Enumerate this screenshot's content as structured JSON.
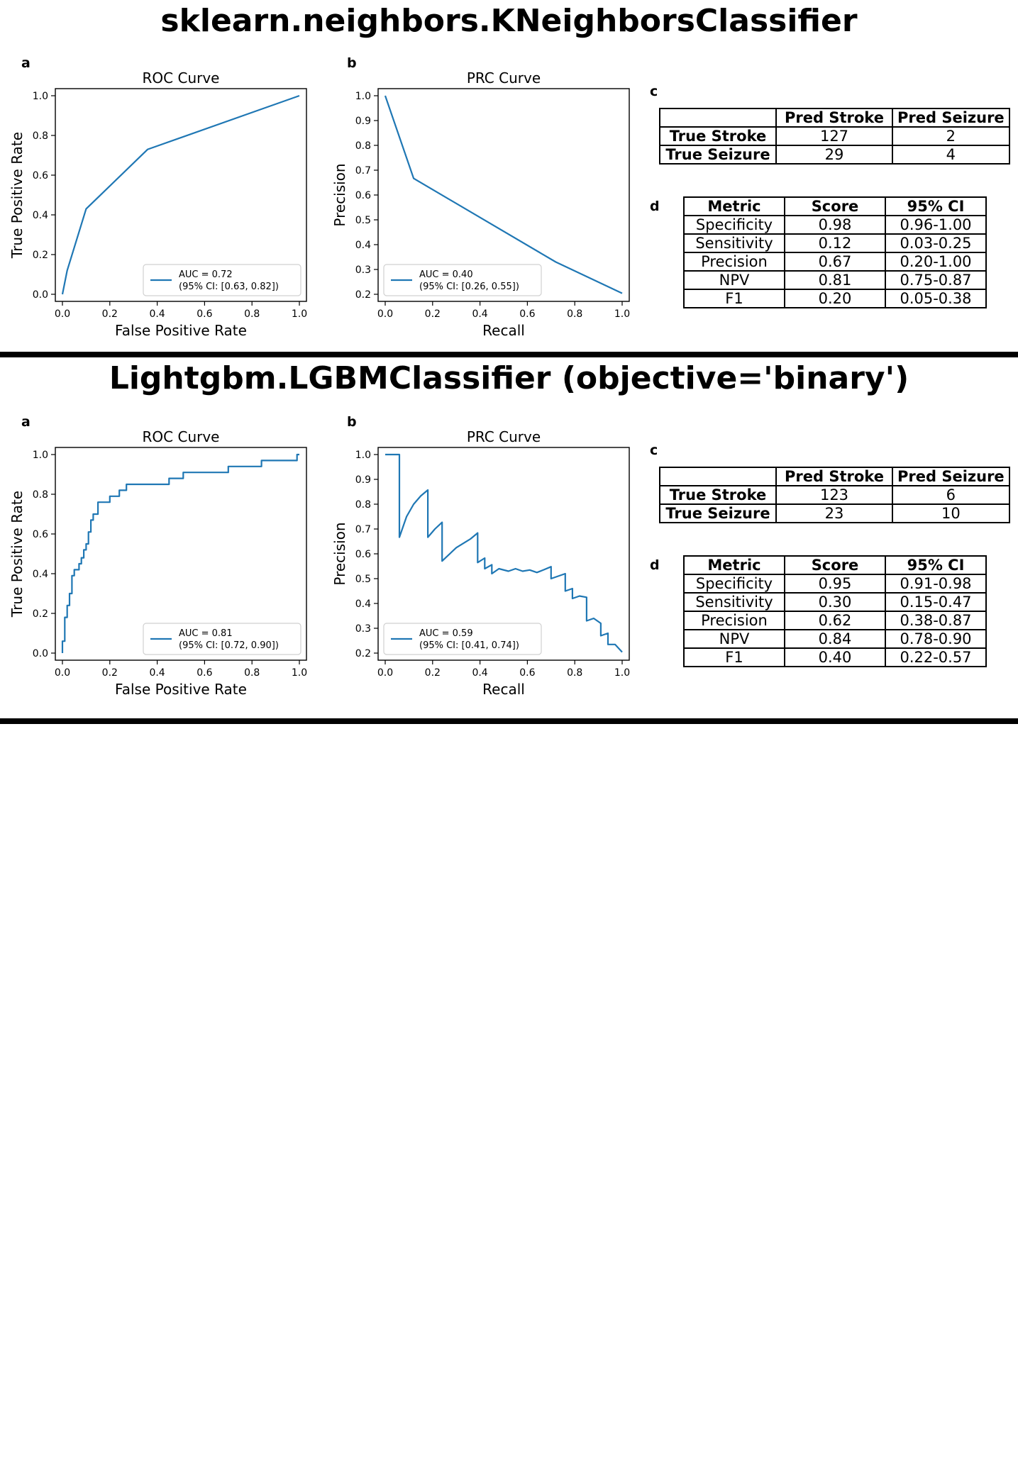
{
  "sections": [
    {
      "title": "sklearn.neighbors.KNeighborsClassifier",
      "panel_letters": [
        "a",
        "b",
        "c",
        "d"
      ],
      "confusion_matrix": {
        "col_headers": [
          "Pred Stroke",
          "Pred Seizure"
        ],
        "rows": [
          {
            "label": "True Stroke",
            "values": [
              "127",
              "2"
            ]
          },
          {
            "label": "True Seizure",
            "values": [
              "29",
              "4"
            ]
          }
        ]
      },
      "metrics": {
        "headers": [
          "Metric",
          "Score",
          "95% CI"
        ],
        "rows": [
          [
            "Specificity",
            "0.98",
            "0.96-1.00"
          ],
          [
            "Sensitivity",
            "0.12",
            "0.03-0.25"
          ],
          [
            "Precision",
            "0.67",
            "0.20-1.00"
          ],
          [
            "NPV",
            "0.81",
            "0.75-0.87"
          ],
          [
            "F1",
            "0.20",
            "0.05-0.38"
          ]
        ]
      }
    },
    {
      "title": "Lightgbm.LGBMClassifier (objective='binary')",
      "panel_letters": [
        "a",
        "b",
        "c",
        "d"
      ],
      "confusion_matrix": {
        "col_headers": [
          "Pred Stroke",
          "Pred Seizure"
        ],
        "rows": [
          {
            "label": "True Stroke",
            "values": [
              "123",
              "6"
            ]
          },
          {
            "label": "True Seizure",
            "values": [
              "23",
              "10"
            ]
          }
        ]
      },
      "metrics": {
        "headers": [
          "Metric",
          "Score",
          "95% CI"
        ],
        "rows": [
          [
            "Specificity",
            "0.95",
            "0.91-0.98"
          ],
          [
            "Sensitivity",
            "0.30",
            "0.15-0.47"
          ],
          [
            "Precision",
            "0.62",
            "0.38-0.87"
          ],
          [
            "NPV",
            "0.84",
            "0.78-0.90"
          ],
          [
            "F1",
            "0.40",
            "0.22-0.57"
          ]
        ]
      }
    }
  ],
  "chart_data": [
    {
      "type": "line",
      "title": "ROC Curve",
      "xlabel": "False Positive Rate",
      "ylabel": "True Positive Rate",
      "xlim": [
        0.0,
        1.0
      ],
      "ylim": [
        0.0,
        1.0
      ],
      "xticks": [
        "0.0",
        "0.2",
        "0.4",
        "0.6",
        "0.8",
        "1.0"
      ],
      "yticks": [
        "0.0",
        "0.2",
        "0.4",
        "0.6",
        "0.8",
        "1.0"
      ],
      "legend": {
        "location": "lower right",
        "lines": [
          "AUC = 0.72",
          "(95% CI: [0.63, 0.82])"
        ]
      },
      "color": "#1f77b4",
      "x": [
        0.0,
        0.02,
        0.1,
        0.36,
        1.0
      ],
      "y": [
        0.0,
        0.12,
        0.43,
        0.73,
        1.0
      ]
    },
    {
      "type": "line",
      "title": "PRC Curve",
      "xlabel": "Recall",
      "ylabel": "Precision",
      "xlim": [
        0.0,
        1.0
      ],
      "ylim": [
        0.2,
        1.0
      ],
      "xticks": [
        "0.0",
        "0.2",
        "0.4",
        "0.6",
        "0.8",
        "1.0"
      ],
      "yticks": [
        "0.2",
        "0.3",
        "0.4",
        "0.5",
        "0.6",
        "0.7",
        "0.8",
        "0.9",
        "1.0"
      ],
      "legend": {
        "location": "lower left",
        "lines": [
          "AUC = 0.40",
          "(95% CI: [0.26, 0.55])"
        ]
      },
      "color": "#1f77b4",
      "x": [
        0.0,
        0.12,
        0.72,
        1.0
      ],
      "y": [
        1.0,
        0.667,
        0.33,
        0.204
      ]
    },
    {
      "type": "line",
      "title": "ROC Curve",
      "xlabel": "False Positive Rate",
      "ylabel": "True Positive Rate",
      "xlim": [
        0.0,
        1.0
      ],
      "ylim": [
        0.0,
        1.0
      ],
      "xticks": [
        "0.0",
        "0.2",
        "0.4",
        "0.6",
        "0.8",
        "1.0"
      ],
      "yticks": [
        "0.0",
        "0.2",
        "0.4",
        "0.6",
        "0.8",
        "1.0"
      ],
      "legend": {
        "location": "lower right",
        "lines": [
          "AUC = 0.81",
          "(95% CI: [0.72, 0.90])"
        ]
      },
      "color": "#1f77b4",
      "x": [
        0.0,
        0.0,
        0.01,
        0.01,
        0.02,
        0.02,
        0.03,
        0.03,
        0.04,
        0.04,
        0.05,
        0.05,
        0.07,
        0.07,
        0.08,
        0.08,
        0.09,
        0.09,
        0.1,
        0.1,
        0.11,
        0.11,
        0.12,
        0.12,
        0.13,
        0.13,
        0.15,
        0.15,
        0.2,
        0.2,
        0.24,
        0.24,
        0.27,
        0.27,
        0.28,
        0.28,
        0.45,
        0.45,
        0.51,
        0.51,
        0.7,
        0.7,
        0.84,
        0.84,
        0.99,
        0.99,
        1.0
      ],
      "y": [
        0.0,
        0.06,
        0.06,
        0.18,
        0.18,
        0.24,
        0.24,
        0.3,
        0.3,
        0.39,
        0.39,
        0.42,
        0.42,
        0.45,
        0.45,
        0.48,
        0.48,
        0.52,
        0.52,
        0.55,
        0.55,
        0.61,
        0.61,
        0.67,
        0.67,
        0.7,
        0.7,
        0.76,
        0.76,
        0.79,
        0.79,
        0.82,
        0.82,
        0.85,
        0.85,
        0.85,
        0.85,
        0.88,
        0.88,
        0.91,
        0.91,
        0.94,
        0.94,
        0.97,
        0.97,
        1.0,
        1.0
      ]
    },
    {
      "type": "line",
      "title": "PRC Curve",
      "xlabel": "Recall",
      "ylabel": "Precision",
      "xlim": [
        0.0,
        1.0
      ],
      "ylim": [
        0.2,
        1.0
      ],
      "xticks": [
        "0.0",
        "0.2",
        "0.4",
        "0.6",
        "0.8",
        "1.0"
      ],
      "yticks": [
        "0.2",
        "0.3",
        "0.4",
        "0.5",
        "0.6",
        "0.7",
        "0.8",
        "0.9",
        "1.0"
      ],
      "legend": {
        "location": "lower left",
        "lines": [
          "AUC = 0.59",
          "(95% CI: [0.41, 0.74])"
        ]
      },
      "color": "#1f77b4",
      "x": [
        0.0,
        0.06,
        0.06,
        0.09,
        0.12,
        0.15,
        0.18,
        0.18,
        0.21,
        0.24,
        0.24,
        0.3,
        0.36,
        0.39,
        0.39,
        0.42,
        0.42,
        0.45,
        0.45,
        0.48,
        0.52,
        0.55,
        0.58,
        0.61,
        0.64,
        0.67,
        0.7,
        0.7,
        0.76,
        0.76,
        0.79,
        0.79,
        0.82,
        0.85,
        0.85,
        0.88,
        0.91,
        0.91,
        0.94,
        0.94,
        0.97,
        1.0
      ],
      "y": [
        1.0,
        1.0,
        0.667,
        0.75,
        0.8,
        0.833,
        0.857,
        0.667,
        0.7,
        0.727,
        0.571,
        0.625,
        0.66,
        0.684,
        0.565,
        0.583,
        0.54,
        0.556,
        0.52,
        0.54,
        0.53,
        0.54,
        0.53,
        0.535,
        0.525,
        0.536,
        0.548,
        0.5,
        0.52,
        0.45,
        0.46,
        0.42,
        0.43,
        0.425,
        0.33,
        0.34,
        0.32,
        0.27,
        0.28,
        0.235,
        0.235,
        0.204
      ]
    }
  ]
}
